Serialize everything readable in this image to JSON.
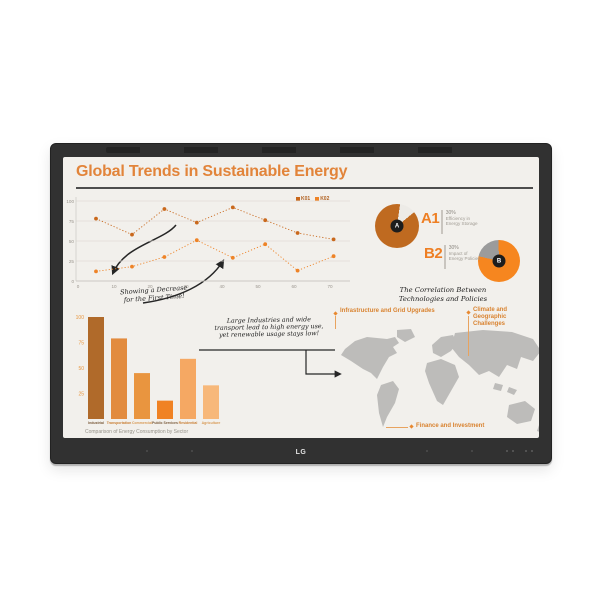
{
  "device": {
    "logo": "LG"
  },
  "screen": {
    "title": "Global Trends in Sustainable Energy",
    "notes": {
      "decrease": [
        "Showing a Decrease",
        "for the First Time!"
      ],
      "industries": [
        "Large Industries and wide",
        "transport lead to high energy use,",
        "yet renewable usage stays low!"
      ],
      "correlation": [
        "The Correlation Between",
        "Technologies and Policies"
      ]
    },
    "callout_infrastructure": "Infrastructure and Grid Upgrades",
    "callout_climate": [
      "Climate and Geographic",
      "Challenges"
    ],
    "callout_finance": "Finance and Investment"
  },
  "colors": {
    "accent_orange": "#e2843a",
    "callout_orange": "#d98330",
    "map_gray": "#bdbcba",
    "bezel": "#313131",
    "screen_bg": "#f2f0ec"
  },
  "chart_data": [
    {
      "type": "line",
      "x": [
        5,
        15,
        24,
        33,
        43,
        52,
        61,
        71
      ],
      "series": [
        {
          "name": "K01",
          "color": "#c9681c",
          "values": [
            78,
            58,
            90,
            73,
            92,
            76,
            60,
            52
          ]
        },
        {
          "name": "K02",
          "color": "#ee8327",
          "values": [
            12,
            18,
            30,
            51,
            29,
            46,
            13,
            31
          ]
        }
      ],
      "xticks": [
        0,
        10,
        20,
        30,
        40,
        50,
        60,
        70
      ],
      "yticks": [
        0,
        25,
        50,
        75,
        100
      ],
      "xlim": [
        0,
        75
      ],
      "ylim": [
        0,
        100
      ],
      "grid": true,
      "line_style": "dotted",
      "legend_position": "top-right"
    },
    {
      "type": "bar",
      "title": "Comparison of Energy Consumption by Sector",
      "categories": [
        "Industrial",
        "Transportation",
        "Commercial",
        "Public Services",
        "Residential",
        "Agriculture"
      ],
      "values": [
        100,
        79,
        45,
        18,
        59,
        33
      ],
      "colors": [
        "#b06a2a",
        "#e28b3e",
        "#e9953f",
        "#f08224",
        "#f5a863",
        "#f7b87a"
      ],
      "label_colors": [
        "#7a5a3a",
        "#c97f35",
        "#d89a55",
        "#7a5a3a",
        "#c97f35",
        "#d89a55"
      ],
      "yticks": [
        25,
        50,
        75,
        100
      ],
      "ylim": [
        0,
        100
      ]
    },
    {
      "type": "pie",
      "center_label": "A",
      "callout": "A1",
      "value": "30%",
      "description": "Efficiency in Energy Storage",
      "rotation_deg": 8,
      "slices": [
        {
          "name": "notch",
          "pct": 12,
          "color": "#edebe7"
        },
        {
          "name": "filled",
          "pct": 88,
          "color": "#bf6a20"
        }
      ]
    },
    {
      "type": "pie",
      "center_label": "B",
      "callout": "B2",
      "value": "30%",
      "description": "Impact of Energy Policies",
      "rotation_deg": 283,
      "slices": [
        {
          "name": "gray",
          "pct": 21,
          "color": "#9b9b9b"
        },
        {
          "name": "filled",
          "pct": 79,
          "color": "#f6861f"
        }
      ]
    }
  ]
}
